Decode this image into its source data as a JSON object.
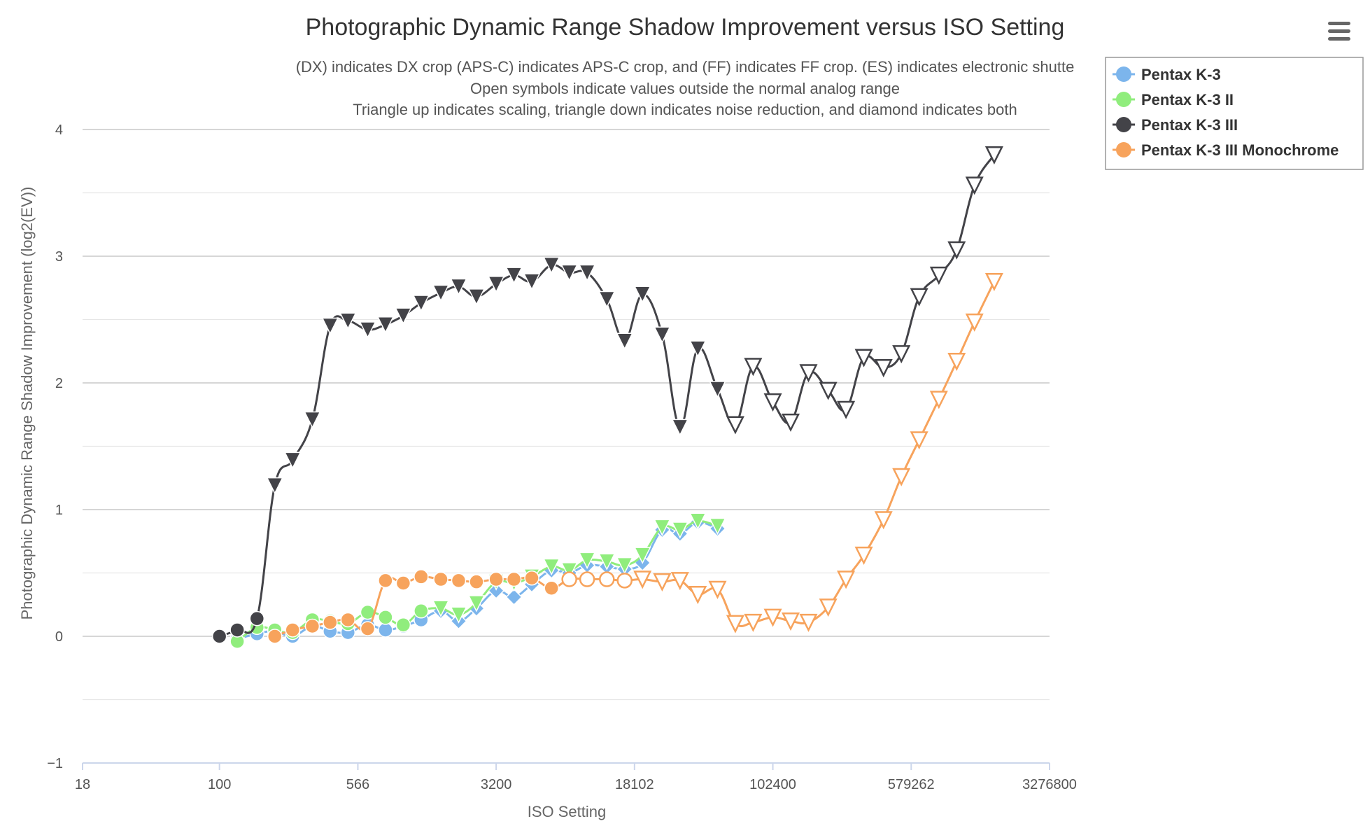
{
  "chart_data": {
    "type": "line",
    "title": "Photographic Dynamic Range Shadow Improvement versus ISO Setting",
    "subtitle": [
      "(DX) indicates DX crop (APS-C) indicates APS-C crop, and (FF) indicates FF crop. (ES) indicates electronic shutte",
      "Open symbols indicate values outside the normal analog range",
      "Triangle up indicates scaling, triangle down indicates noise reduction, and diamond indicates both"
    ],
    "xlabel": "ISO Setting",
    "ylabel": "Photographic Dynamic Range Shadow Improvement (log2(EV))",
    "x_scale": "log2",
    "xlim": [
      18,
      3276800
    ],
    "ylim": [
      -1,
      4
    ],
    "x_ticks": [
      "18",
      "100",
      "566",
      "3200",
      "18102",
      "102400",
      "579262",
      "3276800"
    ],
    "y_ticks": [
      "−1",
      "0",
      "1",
      "2",
      "3",
      "4"
    ],
    "grid": true,
    "legend_position": "top-right",
    "menu_icon": "hamburger-menu-icon",
    "series": [
      {
        "name": "Pentax K-3",
        "color": "#7cb5ec",
        "points": [
          {
            "iso": 125,
            "y": -0.02,
            "marker": "circle",
            "open": false
          },
          {
            "iso": 160,
            "y": 0.02,
            "marker": "circle",
            "open": false
          },
          {
            "iso": 200,
            "y": 0.04,
            "marker": "circle",
            "open": false
          },
          {
            "iso": 250,
            "y": 0.0,
            "marker": "circle",
            "open": false
          },
          {
            "iso": 320,
            "y": 0.08,
            "marker": "circle",
            "open": false
          },
          {
            "iso": 400,
            "y": 0.04,
            "marker": "circle",
            "open": false
          },
          {
            "iso": 500,
            "y": 0.03,
            "marker": "circle",
            "open": false
          },
          {
            "iso": 640,
            "y": 0.09,
            "marker": "circle",
            "open": false
          },
          {
            "iso": 800,
            "y": 0.05,
            "marker": "circle",
            "open": false
          },
          {
            "iso": 1000,
            "y": 0.08,
            "marker": "circle",
            "open": false
          },
          {
            "iso": 1250,
            "y": 0.13,
            "marker": "circle",
            "open": false
          },
          {
            "iso": 1600,
            "y": 0.2,
            "marker": "diamond",
            "open": false
          },
          {
            "iso": 2000,
            "y": 0.12,
            "marker": "diamond",
            "open": false
          },
          {
            "iso": 2500,
            "y": 0.22,
            "marker": "diamond",
            "open": false
          },
          {
            "iso": 3200,
            "y": 0.36,
            "marker": "diamond",
            "open": false
          },
          {
            "iso": 4000,
            "y": 0.31,
            "marker": "diamond",
            "open": false
          },
          {
            "iso": 5000,
            "y": 0.41,
            "marker": "diamond",
            "open": false
          },
          {
            "iso": 6400,
            "y": 0.52,
            "marker": "diamond",
            "open": false
          },
          {
            "iso": 8000,
            "y": 0.5,
            "marker": "diamond",
            "open": false
          },
          {
            "iso": 10000,
            "y": 0.56,
            "marker": "diamond",
            "open": false
          },
          {
            "iso": 12800,
            "y": 0.55,
            "marker": "diamond",
            "open": false
          },
          {
            "iso": 16000,
            "y": 0.53,
            "marker": "diamond",
            "open": false
          },
          {
            "iso": 20000,
            "y": 0.58,
            "marker": "diamond",
            "open": false
          },
          {
            "iso": 25600,
            "y": 0.84,
            "marker": "diamond",
            "open": false
          },
          {
            "iso": 32000,
            "y": 0.81,
            "marker": "diamond",
            "open": false
          },
          {
            "iso": 40000,
            "y": 0.9,
            "marker": "diamond",
            "open": false
          },
          {
            "iso": 51200,
            "y": 0.85,
            "marker": "diamond",
            "open": false
          }
        ]
      },
      {
        "name": "Pentax K-3 II",
        "color": "#90ed7d",
        "points": [
          {
            "iso": 125,
            "y": -0.04,
            "marker": "circle",
            "open": false
          },
          {
            "iso": 160,
            "y": 0.07,
            "marker": "circle",
            "open": false
          },
          {
            "iso": 200,
            "y": 0.05,
            "marker": "circle",
            "open": false
          },
          {
            "iso": 250,
            "y": 0.03,
            "marker": "circle",
            "open": false
          },
          {
            "iso": 320,
            "y": 0.13,
            "marker": "circle",
            "open": false
          },
          {
            "iso": 400,
            "y": 0.12,
            "marker": "circle",
            "open": false
          },
          {
            "iso": 500,
            "y": 0.1,
            "marker": "circle",
            "open": false
          },
          {
            "iso": 640,
            "y": 0.19,
            "marker": "circle",
            "open": false
          },
          {
            "iso": 800,
            "y": 0.15,
            "marker": "circle",
            "open": false
          },
          {
            "iso": 1000,
            "y": 0.09,
            "marker": "circle",
            "open": false
          },
          {
            "iso": 1250,
            "y": 0.2,
            "marker": "circle",
            "open": false
          },
          {
            "iso": 1600,
            "y": 0.22,
            "marker": "triangle-down",
            "open": false
          },
          {
            "iso": 2000,
            "y": 0.17,
            "marker": "triangle-down",
            "open": false
          },
          {
            "iso": 2500,
            "y": 0.26,
            "marker": "triangle-down",
            "open": false
          },
          {
            "iso": 3200,
            "y": 0.43,
            "marker": "triangle-down",
            "open": false
          },
          {
            "iso": 4000,
            "y": 0.42,
            "marker": "triangle-down",
            "open": false
          },
          {
            "iso": 5000,
            "y": 0.47,
            "marker": "triangle-down",
            "open": false
          },
          {
            "iso": 6400,
            "y": 0.55,
            "marker": "triangle-down",
            "open": false
          },
          {
            "iso": 8000,
            "y": 0.52,
            "marker": "triangle-down",
            "open": false
          },
          {
            "iso": 10000,
            "y": 0.6,
            "marker": "triangle-down",
            "open": false
          },
          {
            "iso": 12800,
            "y": 0.59,
            "marker": "triangle-down",
            "open": false
          },
          {
            "iso": 16000,
            "y": 0.56,
            "marker": "triangle-down",
            "open": false
          },
          {
            "iso": 20000,
            "y": 0.64,
            "marker": "triangle-down",
            "open": false
          },
          {
            "iso": 25600,
            "y": 0.86,
            "marker": "triangle-down",
            "open": false
          },
          {
            "iso": 32000,
            "y": 0.84,
            "marker": "triangle-down",
            "open": false
          },
          {
            "iso": 40000,
            "y": 0.91,
            "marker": "triangle-down",
            "open": false
          },
          {
            "iso": 51200,
            "y": 0.87,
            "marker": "triangle-down",
            "open": false
          }
        ]
      },
      {
        "name": "Pentax K-3 III",
        "color": "#434348",
        "points": [
          {
            "iso": 100,
            "y": 0.0,
            "marker": "circle",
            "open": false
          },
          {
            "iso": 125,
            "y": 0.05,
            "marker": "circle",
            "open": false
          },
          {
            "iso": 160,
            "y": 0.14,
            "marker": "circle",
            "open": false
          },
          {
            "iso": 200,
            "y": 1.19,
            "marker": "triangle-down",
            "open": false
          },
          {
            "iso": 250,
            "y": 1.39,
            "marker": "triangle-down",
            "open": false
          },
          {
            "iso": 320,
            "y": 1.71,
            "marker": "triangle-down",
            "open": false
          },
          {
            "iso": 400,
            "y": 2.45,
            "marker": "triangle-down",
            "open": false
          },
          {
            "iso": 500,
            "y": 2.49,
            "marker": "triangle-down",
            "open": false
          },
          {
            "iso": 640,
            "y": 2.42,
            "marker": "triangle-down",
            "open": false
          },
          {
            "iso": 800,
            "y": 2.46,
            "marker": "triangle-down",
            "open": false
          },
          {
            "iso": 1000,
            "y": 2.53,
            "marker": "triangle-down",
            "open": false
          },
          {
            "iso": 1250,
            "y": 2.63,
            "marker": "triangle-down",
            "open": false
          },
          {
            "iso": 1600,
            "y": 2.71,
            "marker": "triangle-down",
            "open": false
          },
          {
            "iso": 2000,
            "y": 2.76,
            "marker": "triangle-down",
            "open": false
          },
          {
            "iso": 2500,
            "y": 2.68,
            "marker": "triangle-down",
            "open": false
          },
          {
            "iso": 3200,
            "y": 2.78,
            "marker": "triangle-down",
            "open": false
          },
          {
            "iso": 4000,
            "y": 2.85,
            "marker": "triangle-down",
            "open": false
          },
          {
            "iso": 5000,
            "y": 2.8,
            "marker": "triangle-down",
            "open": false
          },
          {
            "iso": 6400,
            "y": 2.93,
            "marker": "triangle-down",
            "open": false
          },
          {
            "iso": 8000,
            "y": 2.87,
            "marker": "triangle-down",
            "open": false
          },
          {
            "iso": 10000,
            "y": 2.87,
            "marker": "triangle-down",
            "open": false
          },
          {
            "iso": 12800,
            "y": 2.66,
            "marker": "triangle-down",
            "open": false
          },
          {
            "iso": 16000,
            "y": 2.33,
            "marker": "triangle-down",
            "open": false
          },
          {
            "iso": 20000,
            "y": 2.7,
            "marker": "triangle-down",
            "open": false
          },
          {
            "iso": 25600,
            "y": 2.38,
            "marker": "triangle-down",
            "open": false
          },
          {
            "iso": 32000,
            "y": 1.65,
            "marker": "triangle-down",
            "open": false
          },
          {
            "iso": 40000,
            "y": 2.27,
            "marker": "triangle-down",
            "open": false
          },
          {
            "iso": 51200,
            "y": 1.95,
            "marker": "triangle-down",
            "open": false
          },
          {
            "iso": 64000,
            "y": 1.67,
            "marker": "triangle-down",
            "open": true
          },
          {
            "iso": 80000,
            "y": 2.13,
            "marker": "triangle-down",
            "open": true
          },
          {
            "iso": 102400,
            "y": 1.85,
            "marker": "triangle-down",
            "open": true
          },
          {
            "iso": 128000,
            "y": 1.69,
            "marker": "triangle-down",
            "open": true
          },
          {
            "iso": 160000,
            "y": 2.08,
            "marker": "triangle-down",
            "open": true
          },
          {
            "iso": 204800,
            "y": 1.94,
            "marker": "triangle-down",
            "open": true
          },
          {
            "iso": 256000,
            "y": 1.79,
            "marker": "triangle-down",
            "open": true
          },
          {
            "iso": 320000,
            "y": 2.2,
            "marker": "triangle-down",
            "open": true
          },
          {
            "iso": 409600,
            "y": 2.12,
            "marker": "triangle-down",
            "open": true
          },
          {
            "iso": 512000,
            "y": 2.23,
            "marker": "triangle-down",
            "open": true
          },
          {
            "iso": 640000,
            "y": 2.68,
            "marker": "triangle-down",
            "open": true
          },
          {
            "iso": 819200,
            "y": 2.85,
            "marker": "triangle-down",
            "open": true
          },
          {
            "iso": 1024000,
            "y": 3.05,
            "marker": "triangle-down",
            "open": true
          },
          {
            "iso": 1280000,
            "y": 3.56,
            "marker": "triangle-down",
            "open": true
          },
          {
            "iso": 1638400,
            "y": 3.8,
            "marker": "triangle-down",
            "open": true
          }
        ]
      },
      {
        "name": "Pentax K-3 III Monochrome",
        "color": "#f7a35c",
        "points": [
          {
            "iso": 200,
            "y": 0.0,
            "marker": "circle",
            "open": false
          },
          {
            "iso": 250,
            "y": 0.05,
            "marker": "circle",
            "open": false
          },
          {
            "iso": 320,
            "y": 0.08,
            "marker": "circle",
            "open": false
          },
          {
            "iso": 400,
            "y": 0.11,
            "marker": "circle",
            "open": false
          },
          {
            "iso": 500,
            "y": 0.13,
            "marker": "circle",
            "open": false
          },
          {
            "iso": 640,
            "y": 0.06,
            "marker": "circle",
            "open": false
          },
          {
            "iso": 800,
            "y": 0.44,
            "marker": "circle",
            "open": false
          },
          {
            "iso": 1000,
            "y": 0.42,
            "marker": "circle",
            "open": false
          },
          {
            "iso": 1250,
            "y": 0.47,
            "marker": "circle",
            "open": false
          },
          {
            "iso": 1600,
            "y": 0.45,
            "marker": "circle",
            "open": false
          },
          {
            "iso": 2000,
            "y": 0.44,
            "marker": "circle",
            "open": false
          },
          {
            "iso": 2500,
            "y": 0.43,
            "marker": "circle",
            "open": false
          },
          {
            "iso": 3200,
            "y": 0.45,
            "marker": "circle",
            "open": false
          },
          {
            "iso": 4000,
            "y": 0.45,
            "marker": "circle",
            "open": false
          },
          {
            "iso": 5000,
            "y": 0.46,
            "marker": "circle",
            "open": false
          },
          {
            "iso": 6400,
            "y": 0.38,
            "marker": "circle",
            "open": false
          },
          {
            "iso": 8000,
            "y": 0.45,
            "marker": "circle",
            "open": true
          },
          {
            "iso": 10000,
            "y": 0.45,
            "marker": "circle",
            "open": true
          },
          {
            "iso": 12800,
            "y": 0.45,
            "marker": "circle",
            "open": true
          },
          {
            "iso": 16000,
            "y": 0.44,
            "marker": "circle",
            "open": true
          },
          {
            "iso": 20000,
            "y": 0.45,
            "marker": "triangle-down",
            "open": true
          },
          {
            "iso": 25600,
            "y": 0.43,
            "marker": "triangle-down",
            "open": true
          },
          {
            "iso": 32000,
            "y": 0.44,
            "marker": "triangle-down",
            "open": true
          },
          {
            "iso": 40000,
            "y": 0.33,
            "marker": "triangle-down",
            "open": true
          },
          {
            "iso": 51200,
            "y": 0.37,
            "marker": "triangle-down",
            "open": true
          },
          {
            "iso": 64000,
            "y": 0.1,
            "marker": "triangle-down",
            "open": true
          },
          {
            "iso": 80000,
            "y": 0.11,
            "marker": "triangle-down",
            "open": true
          },
          {
            "iso": 102400,
            "y": 0.15,
            "marker": "triangle-down",
            "open": true
          },
          {
            "iso": 128000,
            "y": 0.12,
            "marker": "triangle-down",
            "open": true
          },
          {
            "iso": 160000,
            "y": 0.11,
            "marker": "triangle-down",
            "open": true
          },
          {
            "iso": 204800,
            "y": 0.23,
            "marker": "triangle-down",
            "open": true
          },
          {
            "iso": 256000,
            "y": 0.45,
            "marker": "triangle-down",
            "open": true
          },
          {
            "iso": 320000,
            "y": 0.64,
            "marker": "triangle-down",
            "open": true
          },
          {
            "iso": 409600,
            "y": 0.92,
            "marker": "triangle-down",
            "open": true
          },
          {
            "iso": 512000,
            "y": 1.26,
            "marker": "triangle-down",
            "open": true
          },
          {
            "iso": 640000,
            "y": 1.55,
            "marker": "triangle-down",
            "open": true
          },
          {
            "iso": 819200,
            "y": 1.87,
            "marker": "triangle-down",
            "open": true
          },
          {
            "iso": 1024000,
            "y": 2.17,
            "marker": "triangle-down",
            "open": true
          },
          {
            "iso": 1280000,
            "y": 2.48,
            "marker": "triangle-down",
            "open": true
          },
          {
            "iso": 1638400,
            "y": 2.8,
            "marker": "triangle-down",
            "open": true
          }
        ]
      }
    ]
  }
}
